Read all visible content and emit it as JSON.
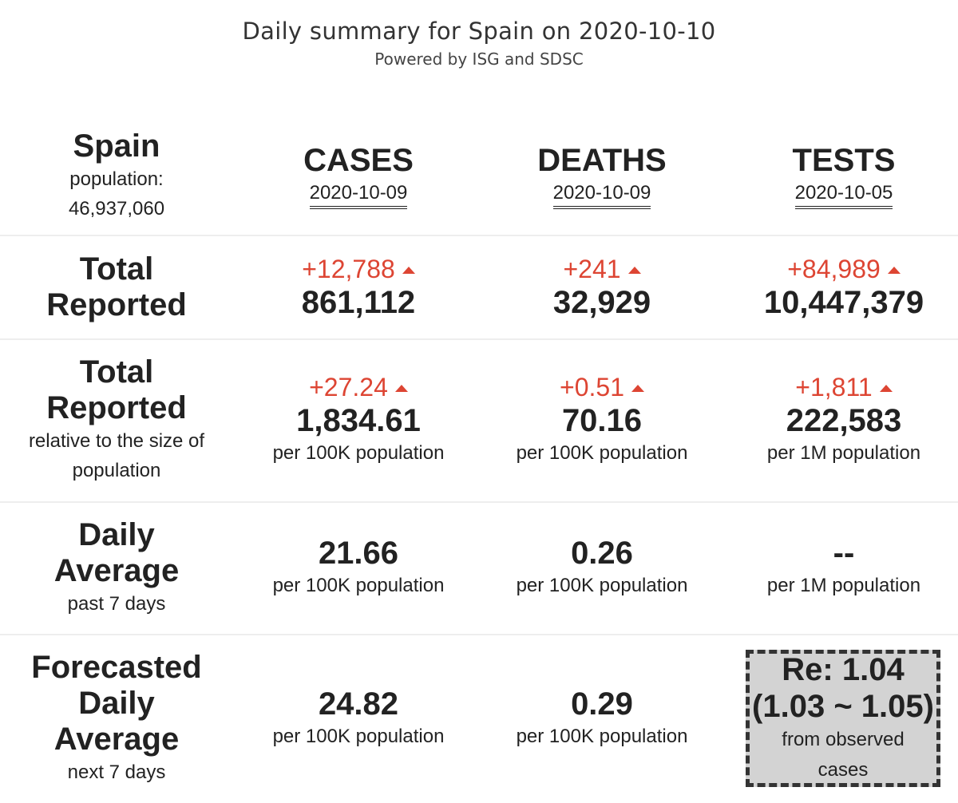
{
  "header": {
    "title": "Daily summary for Spain on 2020-10-10",
    "subtitle": "Powered by ISG and SDSC"
  },
  "country": {
    "name": "Spain",
    "population_label": "population:",
    "population": "46,937,060"
  },
  "columns": [
    {
      "name": "CASES",
      "date": "2020-10-09"
    },
    {
      "name": "DEATHS",
      "date": "2020-10-09"
    },
    {
      "name": "TESTS",
      "date": "2020-10-05"
    }
  ],
  "rows": {
    "total": {
      "label_line1": "Total",
      "label_line2": "Reported",
      "cells": [
        {
          "delta": "+12,788",
          "value": "861,112"
        },
        {
          "delta": "+241",
          "value": "32,929"
        },
        {
          "delta": "+84,989",
          "value": "10,447,379"
        }
      ]
    },
    "relative": {
      "label_line1": "Total",
      "label_line2": "Reported",
      "sub_line1": "relative to the size of",
      "sub_line2": "population",
      "cells": [
        {
          "delta": "+27.24",
          "value": "1,834.61",
          "unit": "per 100K population"
        },
        {
          "delta": "+0.51",
          "value": "70.16",
          "unit": "per 100K population"
        },
        {
          "delta": "+1,811",
          "value": "222,583",
          "unit": "per 1M population"
        }
      ]
    },
    "daily": {
      "label_line1": "Daily",
      "label_line2": "Average",
      "sub": "past 7 days",
      "cells": [
        {
          "value": "21.66",
          "unit": "per 100K population"
        },
        {
          "value": "0.26",
          "unit": "per 100K population"
        },
        {
          "value": "--",
          "unit": "per 1M population"
        }
      ]
    },
    "forecast": {
      "label_line1": "Forecasted",
      "label_line2": "Daily",
      "label_line3": "Average",
      "sub": "next 7 days",
      "cells": [
        {
          "value": "24.82",
          "unit": "per 100K population"
        },
        {
          "value": "0.29",
          "unit": "per 100K population"
        }
      ],
      "re": {
        "value": "Re: 1.04",
        "range": "(1.03 ~ 1.05)",
        "note_line1": "from observed",
        "note_line2": "cases"
      }
    }
  },
  "colors": {
    "increase": "#dd4533",
    "text": "#222222",
    "re_box_bg": "#d3d3d3"
  },
  "icons": {
    "increase_indicator": "triangle-up-icon"
  }
}
